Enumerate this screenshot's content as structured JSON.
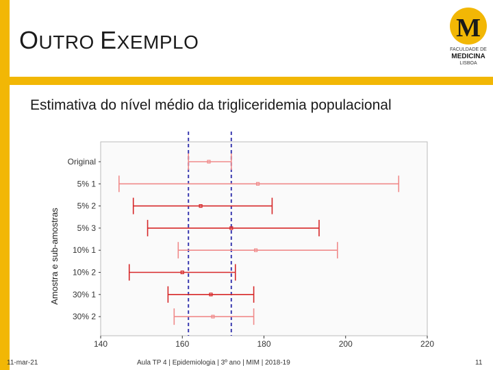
{
  "slide": {
    "title_first_big": "O",
    "title_first_rest": "UTRO ",
    "title_second_big": "E",
    "title_second_rest": "XEMPLO",
    "subtitle": "Estimativa do nível médio da trigliceridemia populacional"
  },
  "logo": {
    "letters": "M",
    "line1": "FACULDADE DE",
    "line2": "MEDICINA",
    "line3": "LISBOA",
    "color": "#f2b705"
  },
  "footer": {
    "date": "11-mar-21",
    "course": "Aula TP 4 | Epidemiologia | 3º ano | MIM | 2018-19",
    "page": "11"
  },
  "colors": {
    "accent": "#f2b705",
    "interval_dark": "#d62728",
    "interval_light": "#f08a8a",
    "reference_line": "#3a3ab0"
  },
  "chart_data": {
    "type": "interval",
    "ylabel": "Amostra e sub-amostras",
    "xlabel": "",
    "xlim": [
      140,
      220
    ],
    "xticks": [
      140,
      160,
      180,
      200,
      220
    ],
    "grid": false,
    "categories": [
      "Original",
      "5% 1",
      "5% 2",
      "5% 3",
      "10% 1",
      "10% 2",
      "30% 1",
      "30% 2"
    ],
    "intervals": [
      {
        "label": "Original",
        "low": 161.5,
        "mean": 166.5,
        "high": 172.0,
        "shade": "light"
      },
      {
        "label": "5% 1",
        "low": 144.5,
        "mean": 178.5,
        "high": 213.0,
        "shade": "light"
      },
      {
        "label": "5% 2",
        "low": 148.0,
        "mean": 164.5,
        "high": 182.0,
        "shade": "dark"
      },
      {
        "label": "5% 3",
        "low": 151.5,
        "mean": 172.0,
        "high": 193.5,
        "shade": "dark"
      },
      {
        "label": "10% 1",
        "low": 159.0,
        "mean": 178.0,
        "high": 198.0,
        "shade": "light"
      },
      {
        "label": "10% 2",
        "low": 147.0,
        "mean": 160.0,
        "high": 173.0,
        "shade": "dark"
      },
      {
        "label": "30% 1",
        "low": 156.5,
        "mean": 167.0,
        "high": 177.5,
        "shade": "dark"
      },
      {
        "label": "30% 2",
        "low": 158.0,
        "mean": 167.5,
        "high": 177.5,
        "shade": "light"
      }
    ],
    "reference_lines": [
      161.5,
      172.0
    ]
  }
}
